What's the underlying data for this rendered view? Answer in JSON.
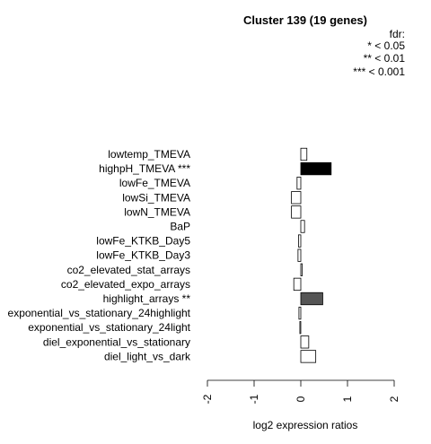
{
  "chart_data": {
    "type": "bar",
    "orientation": "horizontal",
    "title": "Cluster 139 (19 genes)",
    "legend": {
      "title": "fdr:",
      "entries": [
        "* < 0.05",
        "** < 0.01",
        "*** < 0.001"
      ],
      "position": "top-right"
    },
    "xlabel": "log2 expression ratios",
    "xlim": [
      -2,
      2
    ],
    "xticks": [
      "-2",
      "-1",
      "0",
      "1",
      "2"
    ],
    "categories": [
      "lowtemp_TMEVA",
      "highpH_TMEVA ***",
      "lowFe_TMEVA",
      "lowSi_TMEVA",
      "lowN_TMEVA",
      "BaP",
      "lowFe_KTKB_Day5",
      "lowFe_KTKB_Day3",
      "co2_elevated_stat_arrays",
      "co2_elevated_expo_arrays",
      "highlight_arrays **",
      "exponential_vs_stationary_24highlight",
      "exponential_vs_stationary_24light",
      "diel_exponential_vs_stationary",
      "diel_light_vs_dark"
    ],
    "values": [
      0.13,
      0.65,
      -0.08,
      -0.2,
      -0.2,
      0.08,
      -0.05,
      -0.06,
      0.03,
      -0.15,
      0.47,
      -0.04,
      -0.02,
      0.17,
      0.32
    ],
    "bar_colors": [
      "#ffffff",
      "#000000",
      "#ffffff",
      "#ffffff",
      "#ffffff",
      "#ffffff",
      "#ffffff",
      "#ffffff",
      "#ffffff",
      "#ffffff",
      "#555555",
      "#ffffff",
      "#ffffff",
      "#ffffff",
      "#ffffff"
    ],
    "grid": false
  }
}
